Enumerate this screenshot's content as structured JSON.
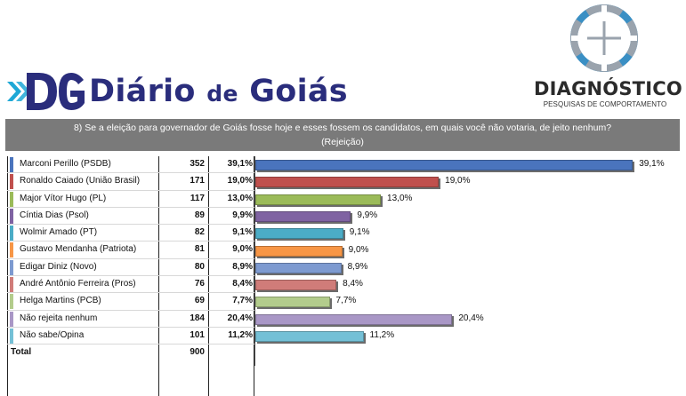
{
  "header": {
    "brand_mark": "DG",
    "brand_name_1": "Diário ",
    "brand_name_de": "de",
    "brand_name_2": " Goiás",
    "diag_name": "DIAGNÓSTICO",
    "diag_sub": "PESQUISAS DE COMPORTAMENTO",
    "icons": [
      "dg-logo-icon",
      "diagnostico-crosshair-icon"
    ]
  },
  "question": {
    "line1": "8) Se a eleição para governador de Goiás fosse hoje e esses fossem os candidatos, em quais você não votaria, de jeito nenhum?",
    "line2": "(Rejeição)"
  },
  "colors": {
    "brand_blue": "#2a2d7c",
    "brand_cyan": "#1ea8d6",
    "question_bg": "#7a7a7a",
    "diag_blue": "#3a8fc4"
  },
  "chart_data": {
    "type": "bar",
    "orientation": "horizontal",
    "categories": [
      "Marconi Perillo (PSDB)",
      "Ronaldo Caiado (União Brasil)",
      "Major Vítor Hugo (PL)",
      "Cíntia Dias (Psol)",
      "Wolmir Amado (PT)",
      "Gustavo Mendanha (Patriota)",
      "Edigar Diniz (Novo)",
      "André Antônio Ferreira (Pros)",
      "Helga Martins (PCB)",
      "Não rejeita nenhum",
      "Não sabe/Opina"
    ],
    "counts": [
      "352",
      "171",
      "117",
      "89",
      "82",
      "81",
      "80",
      "76",
      "69",
      "184",
      "101"
    ],
    "values": [
      39.1,
      19.0,
      13.0,
      9.9,
      9.1,
      9.0,
      8.9,
      8.4,
      7.7,
      20.4,
      11.2
    ],
    "pct_labels": [
      "39,1%",
      "19,0%",
      "13,0%",
      "9,9%",
      "9,1%",
      "9,0%",
      "8,9%",
      "8,4%",
      "7,7%",
      "20,4%",
      "11,2%"
    ],
    "colors": [
      "#4a74bd",
      "#c0504d",
      "#9bbb59",
      "#7f63a2",
      "#4bacc6",
      "#f79646",
      "#7d9ad0",
      "#d07c79",
      "#b3cc8c",
      "#a997c6",
      "#74c0d6"
    ],
    "total_label": "Total",
    "total_count": "900",
    "xlim": [
      0,
      40
    ],
    "grid": false,
    "legend": "none"
  }
}
